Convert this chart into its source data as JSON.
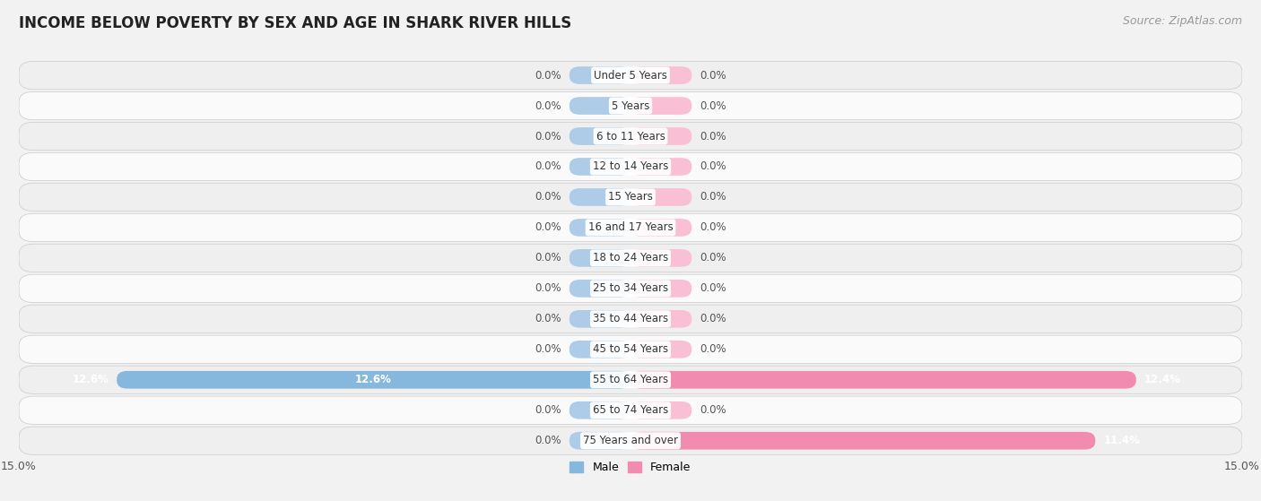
{
  "title": "INCOME BELOW POVERTY BY SEX AND AGE IN SHARK RIVER HILLS",
  "source": "Source: ZipAtlas.com",
  "categories": [
    "Under 5 Years",
    "5 Years",
    "6 to 11 Years",
    "12 to 14 Years",
    "15 Years",
    "16 and 17 Years",
    "18 to 24 Years",
    "25 to 34 Years",
    "35 to 44 Years",
    "45 to 54 Years",
    "55 to 64 Years",
    "65 to 74 Years",
    "75 Years and over"
  ],
  "male_values": [
    0.0,
    0.0,
    0.0,
    0.0,
    0.0,
    0.0,
    0.0,
    0.0,
    0.0,
    0.0,
    12.6,
    0.0,
    0.0
  ],
  "female_values": [
    0.0,
    0.0,
    0.0,
    0.0,
    0.0,
    0.0,
    0.0,
    0.0,
    0.0,
    0.0,
    12.4,
    0.0,
    11.4
  ],
  "male_color": "#85b8dc",
  "female_color": "#f28bb0",
  "male_zero_color": "#aecce8",
  "female_zero_color": "#f9c0d5",
  "xlim": 15.0,
  "bar_height": 0.58,
  "row_bg_colors": [
    "#efefef",
    "#fafafa"
  ],
  "title_fontsize": 12,
  "label_fontsize": 8.5,
  "cat_fontsize": 8.5,
  "tick_fontsize": 9,
  "source_fontsize": 9,
  "zero_stub": 1.5
}
